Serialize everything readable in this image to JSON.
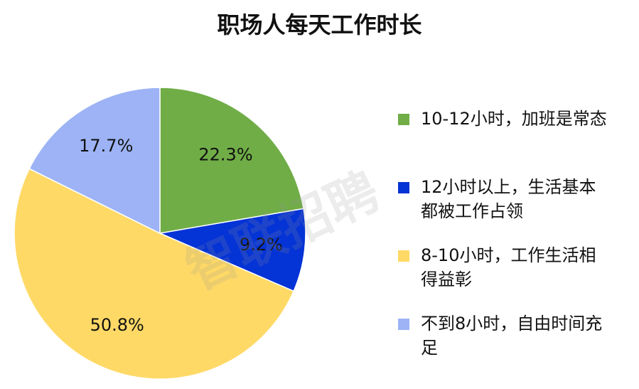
{
  "chart_data": {
    "type": "pie",
    "title": "职场人每天工作时长",
    "watermark": "智联招聘",
    "categories": [
      "10-12小时，加班是常态",
      "12小时以上，生活基本都被工作占领",
      "8-10小时，工作生活相得益彰",
      "不到8小时，自由时间充足"
    ],
    "values": [
      22.3,
      9.2,
      50.8,
      17.7
    ],
    "value_labels": [
      "22.3%",
      "9.2%",
      "50.8%",
      "17.7%"
    ],
    "colors": [
      "#70ad47",
      "#0433d6",
      "#ffd966",
      "#9db3f5"
    ],
    "legend": "right"
  }
}
